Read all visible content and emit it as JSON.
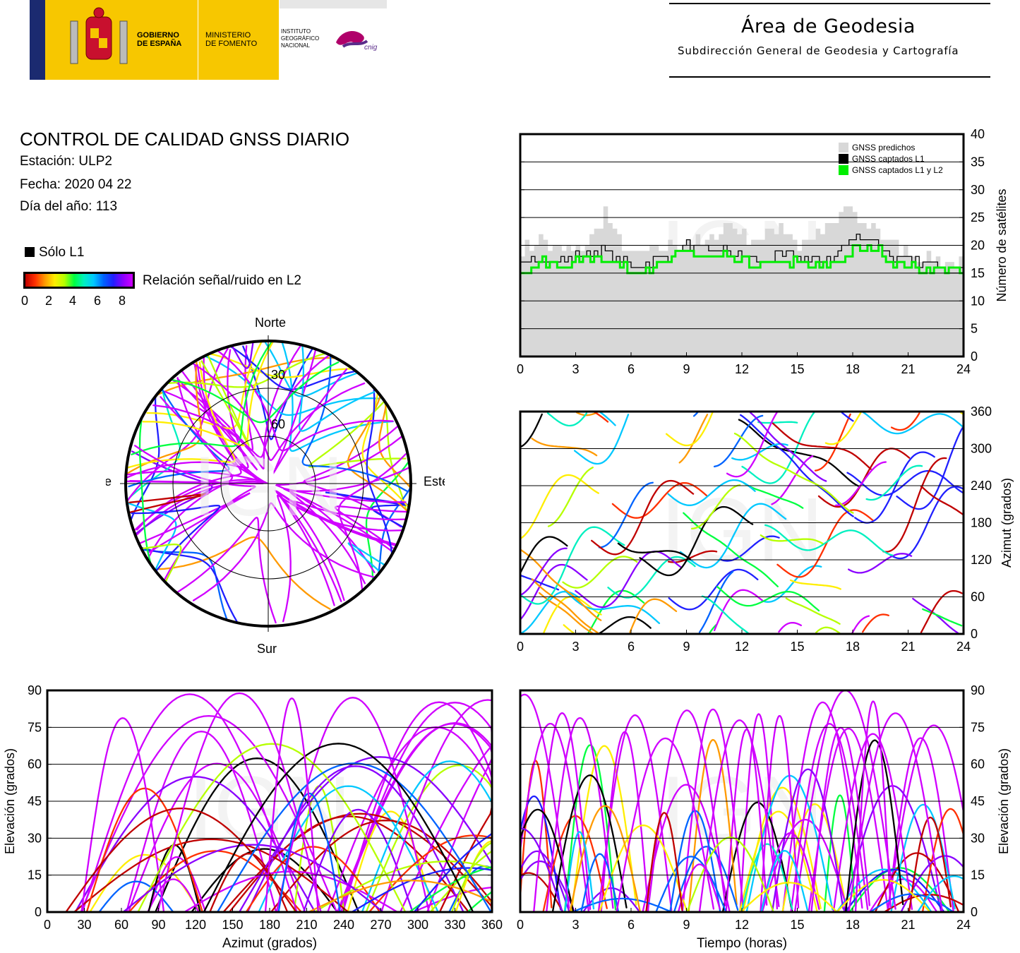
{
  "header": {
    "gov_line1": "GOBIERNO",
    "gov_line2": "DE ESPAÑA",
    "ministry_line1": "MINISTERIO",
    "ministry_line2": "DE FOMENTO",
    "ign_line1": "INSTITUTO",
    "ign_line2": "GEOGRÁFICO",
    "ign_line3": "NACIONAL",
    "cnig": "cnig",
    "area_title": "Área de Geodesia",
    "area_subtitle": "Subdirección General de Geodesia y Cartografía"
  },
  "report": {
    "title": "CONTROL DE CALIDAD GNSS DIARIO",
    "station": "Estación: ULP2",
    "date": "Fecha: 2020 04 22",
    "doy": "Día del año: 113"
  },
  "legend": {
    "only_l1": "Sólo L1",
    "snr_label": "Relación señal/ruido en L2",
    "snr_ticks": [
      "0",
      "2",
      "4",
      "6",
      "8"
    ]
  },
  "watermark": "IGN",
  "colors": {
    "predicted": "#d8d8d8",
    "captured_l1": "#000000",
    "captured_l1l2": "#00ee00",
    "snr_scale": [
      "#c00000",
      "#ff3000",
      "#ff9a00",
      "#ffee00",
      "#b6ff00",
      "#00ff40",
      "#00f0c0",
      "#00c8ff",
      "#0064ff",
      "#2020ff",
      "#8a00ff",
      "#d000ff"
    ]
  },
  "chart_data": [
    {
      "type": "area",
      "id": "satellites",
      "ylabel": "Número de satélites",
      "xlim": [
        0,
        24
      ],
      "ylim": [
        0,
        40
      ],
      "xticks": [
        "0",
        "3",
        "6",
        "9",
        "12",
        "15",
        "18",
        "21",
        "24"
      ],
      "yticks": [
        "0",
        "5",
        "10",
        "15",
        "20",
        "25",
        "30",
        "35",
        "40"
      ],
      "grid": true,
      "legend_position": "top-right",
      "x": [
        0,
        1,
        2,
        3,
        4,
        4.5,
        5,
        6,
        7,
        8,
        9,
        10,
        11,
        12,
        13,
        14,
        15,
        16,
        17,
        17.5,
        18,
        18.5,
        19,
        19.5,
        20,
        21,
        22,
        23,
        24
      ],
      "series": [
        {
          "name": "GNSS predichos",
          "values": [
            19,
            21,
            19,
            19,
            22,
            26,
            22,
            18,
            19,
            20,
            21,
            20,
            24,
            22,
            21,
            24,
            20,
            22,
            24,
            27,
            25,
            23,
            24,
            22,
            20,
            19,
            18,
            17,
            17
          ]
        },
        {
          "name": "GNSS captados L1",
          "values": [
            16,
            18,
            17,
            18,
            19,
            19,
            18,
            16,
            17,
            18,
            20,
            19,
            19,
            18,
            17,
            18,
            18,
            17,
            18,
            20,
            21,
            22,
            21,
            20,
            18,
            17,
            17,
            16,
            16
          ]
        },
        {
          "name": "GNSS captados L1 y L2",
          "values": [
            15,
            17,
            16,
            17,
            18,
            18,
            17,
            15,
            16,
            17,
            19,
            18,
            18,
            17,
            16,
            17,
            17,
            16,
            17,
            18,
            19,
            19,
            20,
            19,
            17,
            16,
            16,
            16,
            15
          ]
        }
      ]
    },
    {
      "type": "scatter",
      "id": "skyplot",
      "title": "",
      "direction_labels": {
        "north": "Norte",
        "south": "Sur",
        "west": "Oeste",
        "east": "Este"
      },
      "ring_labels": [
        "30",
        "60"
      ],
      "note": ""
    },
    {
      "type": "scatter",
      "id": "azimuth_time",
      "ylabel": "Azimut (grados)",
      "xlim": [
        0,
        24
      ],
      "ylim": [
        0,
        360
      ],
      "xticks": [
        "0",
        "3",
        "6",
        "9",
        "12",
        "15",
        "18",
        "21",
        "24"
      ],
      "yticks": [
        "0",
        "60",
        "120",
        "180",
        "240",
        "300",
        "360"
      ],
      "grid": true
    },
    {
      "type": "scatter",
      "id": "elevation_azimuth",
      "xlabel": "Azimut (grados)",
      "ylabel": "Elevación (grados)",
      "xlim": [
        0,
        360
      ],
      "ylim": [
        0,
        90
      ],
      "xticks": [
        "0",
        "30",
        "60",
        "90",
        "120",
        "150",
        "180",
        "210",
        "240",
        "270",
        "300",
        "330",
        "360"
      ],
      "yticks": [
        "0",
        "15",
        "30",
        "45",
        "60",
        "75",
        "90"
      ],
      "grid": true
    },
    {
      "type": "scatter",
      "id": "elevation_time",
      "xlabel": "Tiempo (horas)",
      "ylabel": "Elevación (grados)",
      "xlim": [
        0,
        24
      ],
      "ylim": [
        0,
        90
      ],
      "xticks": [
        "0",
        "3",
        "6",
        "9",
        "12",
        "15",
        "18",
        "21",
        "24"
      ],
      "yticks": [
        "0",
        "15",
        "30",
        "45",
        "60",
        "75",
        "90"
      ],
      "grid": true
    }
  ]
}
